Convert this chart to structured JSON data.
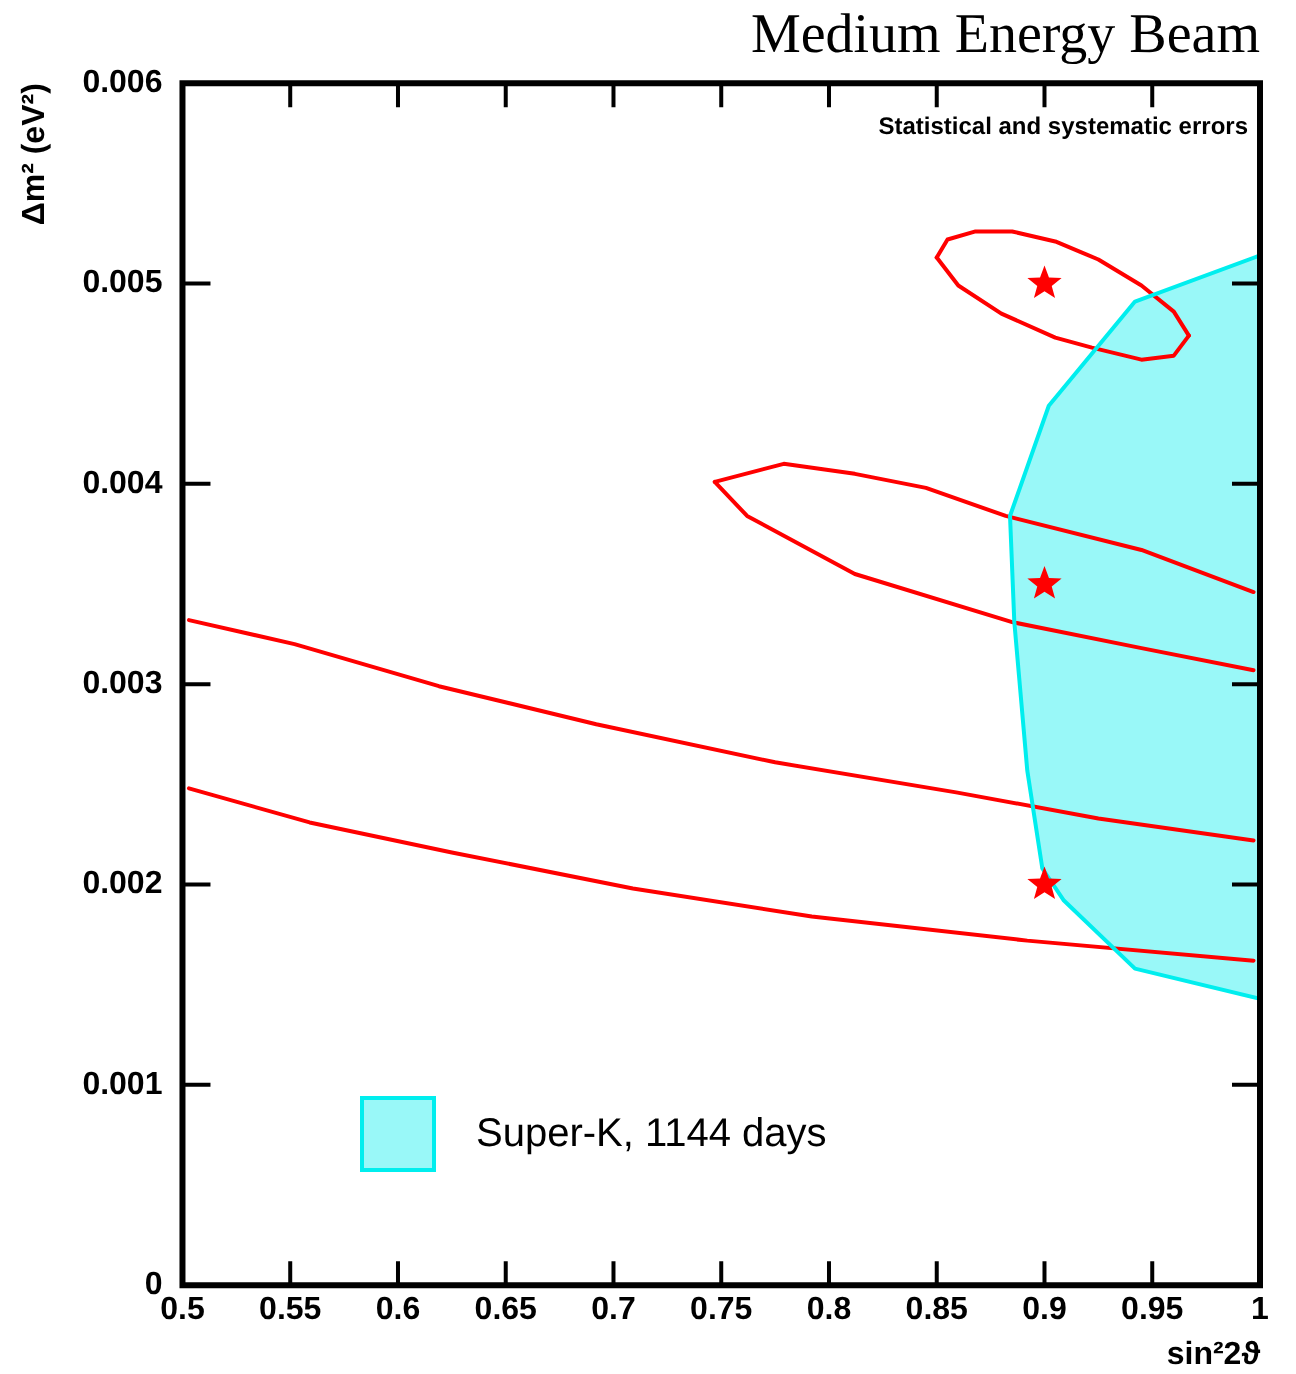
{
  "chart_data": {
    "type": "line",
    "title": "Medium Energy Beam",
    "xlabel": "sin²2ϑ",
    "ylabel": "Δm² (eV²)",
    "annotations": [
      "Statistical and systematic errors"
    ],
    "xlim": [
      0.5,
      1
    ],
    "xticks": [
      0.5,
      0.55,
      0.6,
      0.65,
      0.7,
      0.75,
      0.8,
      0.85,
      0.9,
      0.95,
      1
    ],
    "ylim": [
      0,
      0.006
    ],
    "yticks": [
      0,
      0.001,
      0.002,
      0.003,
      0.004,
      0.005,
      0.006
    ],
    "grid": false,
    "legend": "bottom left",
    "series": [
      {
        "type": "area",
        "name": "Super-K, 1144 days",
        "color": "#00eeee",
        "x": [
          1.0,
          0.942,
          0.902,
          0.884,
          0.886,
          0.892,
          0.899,
          0.909,
          0.942,
          1.0,
          1.0
        ],
        "values": [
          0.00514,
          0.00491,
          0.00439,
          0.00384,
          0.00331,
          0.00257,
          0.00208,
          0.00192,
          0.00158,
          0.00143,
          0.00514
        ]
      },
      {
        "color": "#ff0000",
        "marker": "none",
        "x": [
          0.85,
          0.855,
          0.868,
          0.885,
          0.905,
          0.925,
          0.945,
          0.96,
          0.967
        ],
        "values": [
          0.00513,
          0.00522,
          0.00526,
          0.00526,
          0.00521,
          0.00512,
          0.00499,
          0.00486,
          0.00474
        ]
      },
      {
        "color": "#ff0000",
        "marker": "none",
        "x": [
          0.85,
          0.86,
          0.88,
          0.905,
          0.922,
          0.945,
          0.96,
          0.967
        ],
        "values": [
          0.00513,
          0.00499,
          0.00485,
          0.00473,
          0.00468,
          0.00462,
          0.00464,
          0.00474
        ]
      },
      {
        "color": "#ff0000",
        "marker": "none",
        "x": [
          0.747,
          0.779,
          0.812,
          0.845,
          0.882,
          0.945,
          0.997
        ],
        "values": [
          0.00401,
          0.0041,
          0.00405,
          0.00398,
          0.00384,
          0.00367,
          0.00346
        ]
      },
      {
        "color": "#ff0000",
        "marker": "none",
        "x": [
          0.747,
          0.762,
          0.812,
          0.885,
          0.945,
          0.997
        ],
        "values": [
          0.00401,
          0.00384,
          0.00355,
          0.00331,
          0.00318,
          0.00307
        ]
      },
      {
        "color": "#ff0000",
        "marker": "none",
        "x": [
          0.503,
          0.552,
          0.619,
          0.692,
          0.775,
          0.859,
          0.925,
          0.997
        ],
        "values": [
          0.00332,
          0.0032,
          0.00299,
          0.0028,
          0.00261,
          0.00246,
          0.00233,
          0.00222
        ]
      },
      {
        "color": "#ff0000",
        "marker": "none",
        "x": [
          0.503,
          0.559,
          0.625,
          0.709,
          0.792,
          0.892,
          0.997
        ],
        "values": [
          0.00248,
          0.00231,
          0.00216,
          0.00198,
          0.00184,
          0.00172,
          0.00162
        ]
      },
      {
        "type": "scatter",
        "color": "#ff0000",
        "marker": "star",
        "x": [
          0.9,
          0.9,
          0.9
        ],
        "values": [
          0.005,
          0.0035,
          0.002
        ]
      }
    ]
  }
}
